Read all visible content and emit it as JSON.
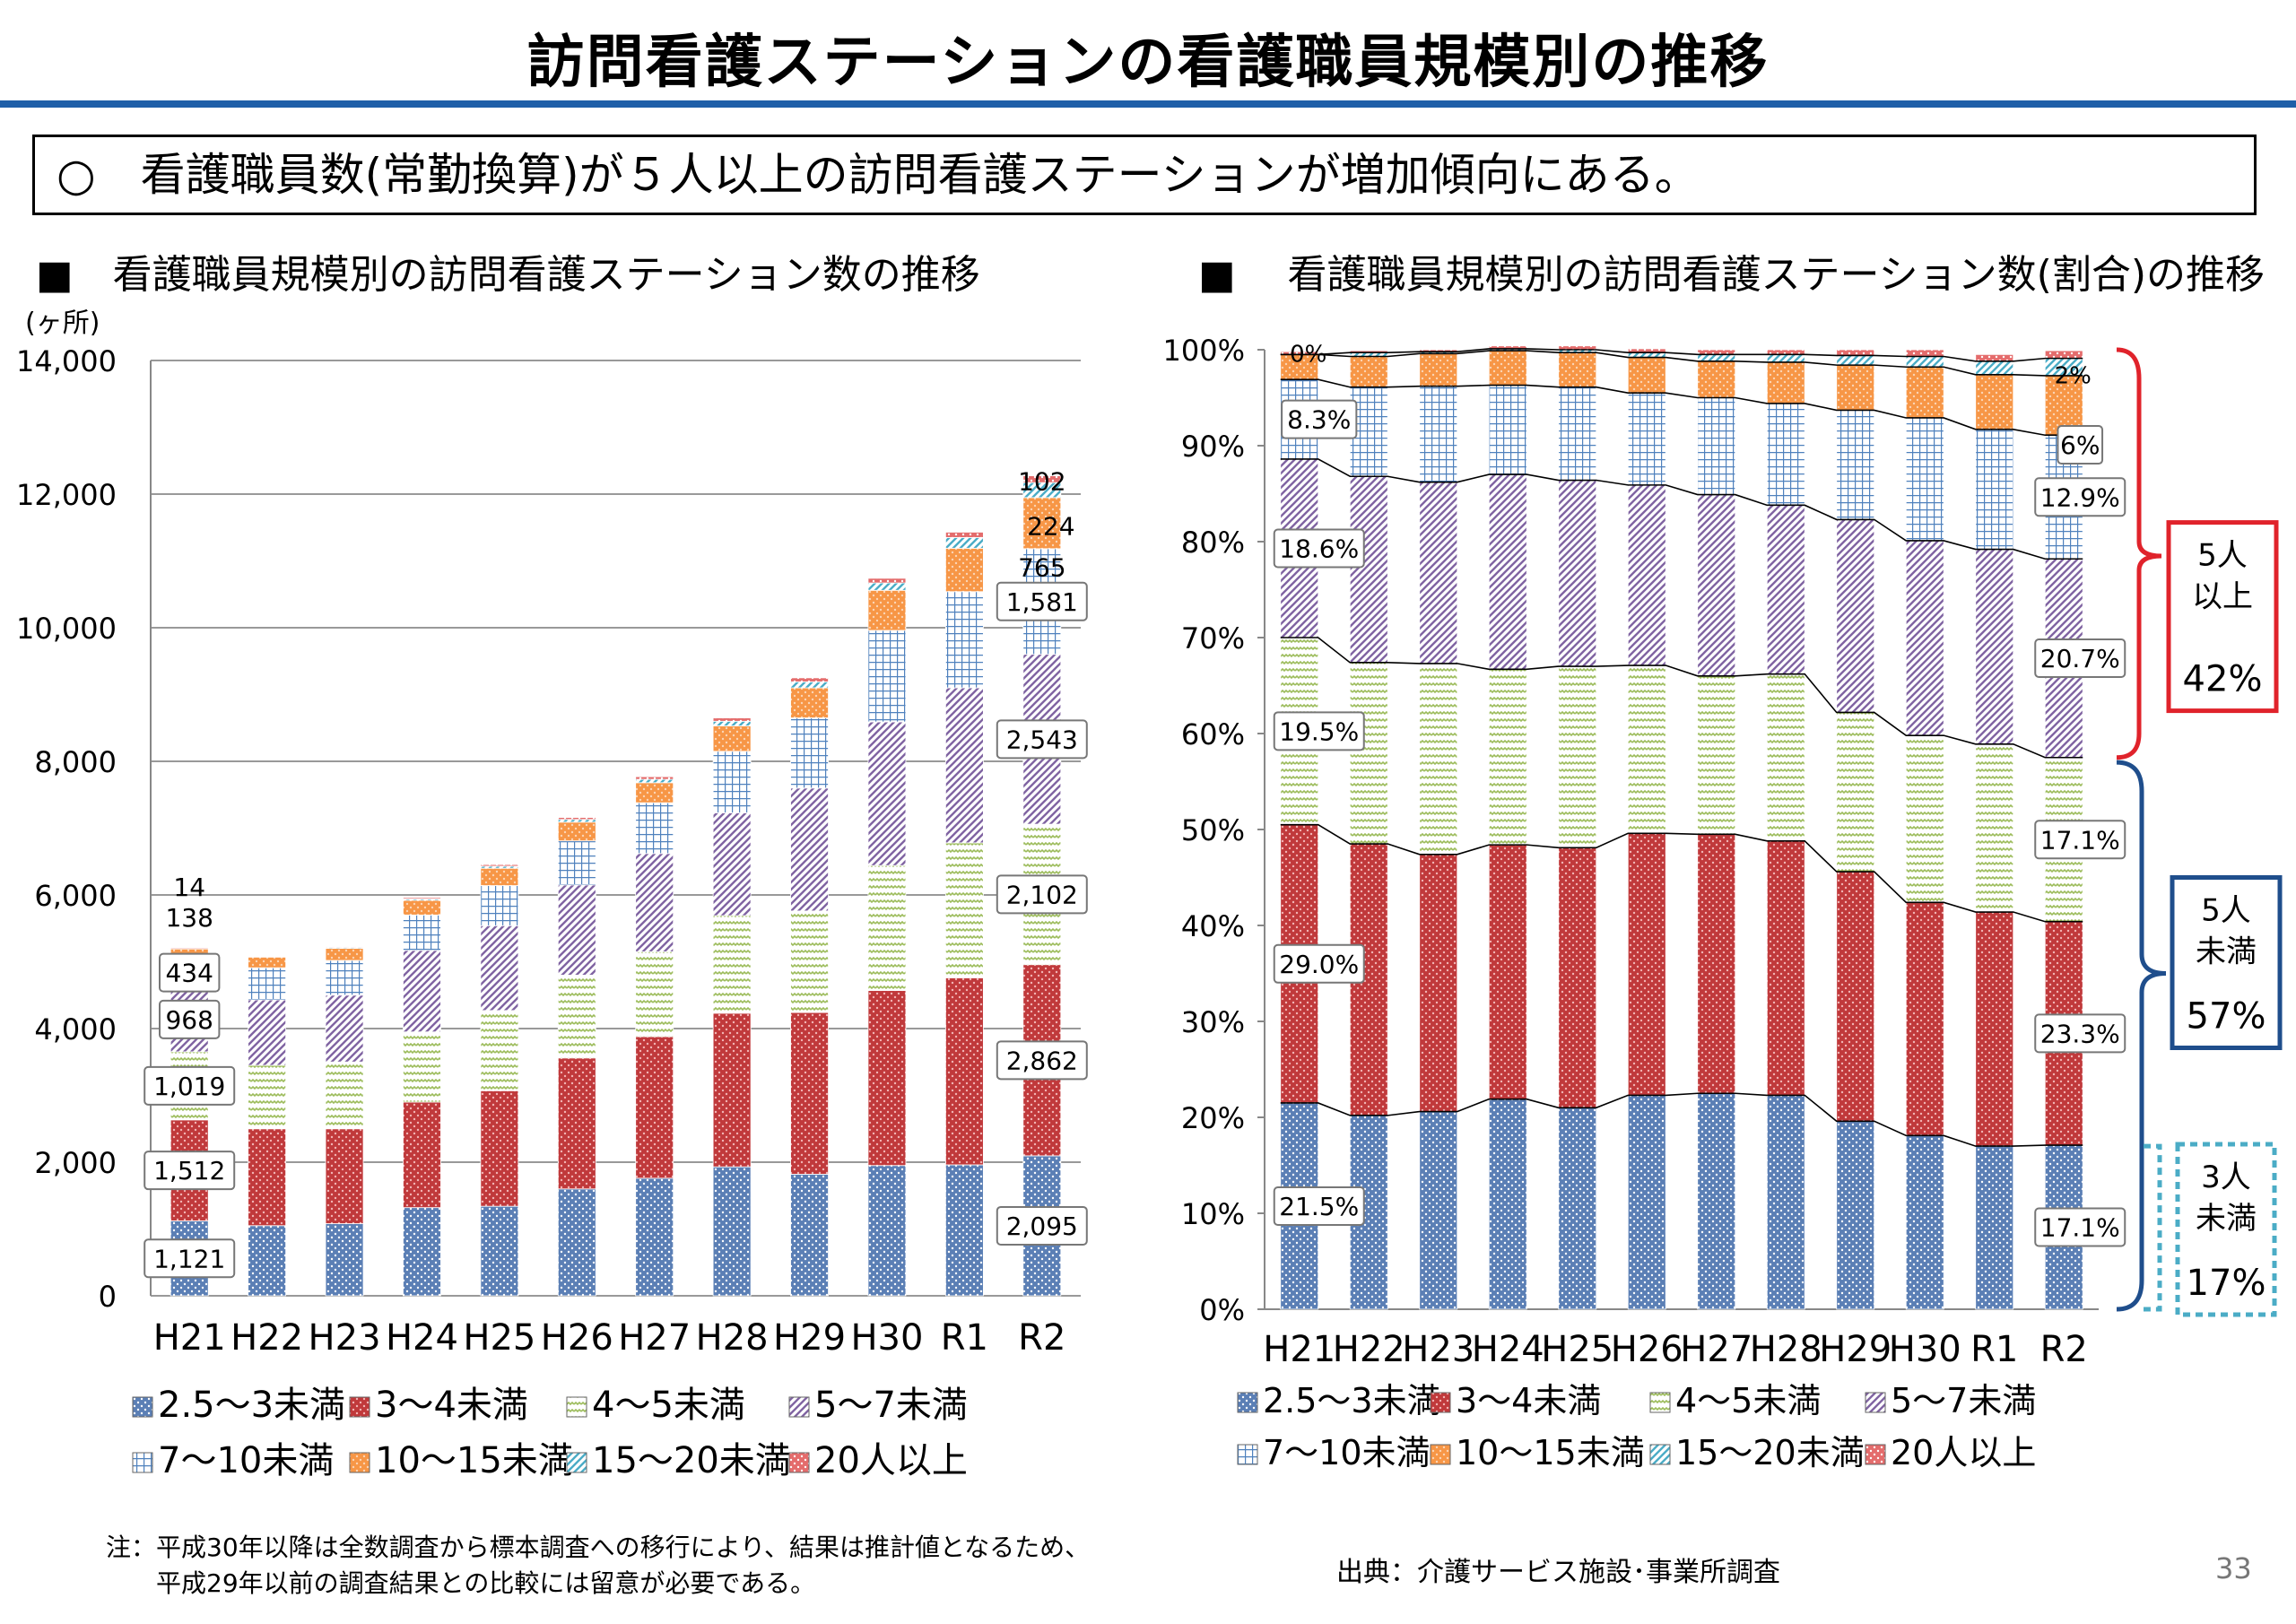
{
  "title": "訪問看護ステーションの看護職員規模別の推移",
  "summary": "○　看護職員数(常勤換算)が５人以上の訪問看護ステーションが増加傾向にある。",
  "left_heading": "■　看護職員規模別の訪問看護ステーション数の推移",
  "right_heading": "■　 看護職員規模別の訪問看護ステーション数(割合)の推移",
  "note_lines": [
    "注：平成30年以降は全数調査から標本調査への移行により、結果は推計値となるため、",
    "　　平成29年以前の調査結果との比較には留意が必要である。"
  ],
  "source": "出典：介護サービス施設･事業所調査",
  "page_number": "33",
  "chart_data": [
    {
      "type": "bar",
      "stacked": true,
      "ylabel": "(ヶ所)",
      "ylim": [
        0,
        14000
      ],
      "yticks": [
        "0",
        "2,000",
        "4,000",
        "6,000",
        "8,000",
        "10,000",
        "12,000",
        "14,000"
      ],
      "categories": [
        "H21",
        "H22",
        "H23",
        "H24",
        "H25",
        "H26",
        "H27",
        "H28",
        "H29",
        "H30",
        "R1",
        "R2"
      ],
      "series": [
        {
          "name": "2.5～3未満",
          "values": [
            1121,
            1050,
            1080,
            1320,
            1340,
            1600,
            1760,
            1930,
            1820,
            1950,
            1960,
            2095
          ]
        },
        {
          "name": "3～4未満",
          "values": [
            1512,
            1450,
            1420,
            1580,
            1730,
            1960,
            2120,
            2300,
            2420,
            2620,
            2800,
            2862
          ]
        },
        {
          "name": "4～5未満",
          "values": [
            1019,
            950,
            1000,
            1050,
            1200,
            1240,
            1270,
            1460,
            1520,
            1870,
            2020,
            2102
          ]
        },
        {
          "name": "5～7未満",
          "values": [
            968,
            980,
            1000,
            1220,
            1270,
            1350,
            1470,
            1540,
            1840,
            2150,
            2320,
            2543
          ]
        },
        {
          "name": "7～10未満",
          "values": [
            434,
            480,
            520,
            530,
            600,
            660,
            760,
            920,
            1050,
            1370,
            1440,
            1581
          ]
        },
        {
          "name": "10～15未満",
          "values": [
            138,
            160,
            180,
            220,
            260,
            280,
            300,
            380,
            450,
            600,
            650,
            765
          ]
        },
        {
          "name": "15～20未満",
          "values": [
            0,
            10,
            15,
            20,
            30,
            40,
            50,
            70,
            90,
            110,
            160,
            224
          ]
        },
        {
          "name": "20人以上",
          "values": [
            14,
            10,
            12,
            20,
            25,
            30,
            40,
            50,
            60,
            70,
            80,
            102
          ]
        }
      ],
      "data_labels": {
        "H21": [
          "1,121",
          "1,512",
          "1,019",
          "968",
          "434",
          "138",
          "",
          "14"
        ],
        "R2": [
          "2,095",
          "2,862",
          "2,102",
          "2,543",
          "1,581",
          "765",
          "224",
          "102"
        ]
      }
    },
    {
      "type": "bar",
      "stacked": true,
      "percent": true,
      "ylim": [
        0,
        100
      ],
      "yticks": [
        "0%",
        "10%",
        "20%",
        "30%",
        "40%",
        "50%",
        "60%",
        "70%",
        "80%",
        "90%",
        "100%"
      ],
      "categories": [
        "H21",
        "H22",
        "H23",
        "H24",
        "H25",
        "H26",
        "H27",
        "H28",
        "H29",
        "H30",
        "R1",
        "R2"
      ],
      "series": [
        {
          "name": "2.5～3未満",
          "values": [
            21.5,
            20.2,
            20.6,
            21.9,
            21.0,
            22.3,
            22.5,
            22.3,
            19.6,
            18.1,
            17.0,
            17.1
          ]
        },
        {
          "name": "3～4未満",
          "values": [
            29.0,
            28.3,
            26.8,
            26.5,
            27.1,
            27.3,
            27.0,
            26.5,
            26.0,
            24.3,
            24.4,
            23.3
          ]
        },
        {
          "name": "4～5未満",
          "values": [
            19.5,
            18.9,
            19.9,
            18.3,
            18.9,
            17.5,
            16.5,
            17.4,
            16.6,
            17.4,
            17.5,
            17.1
          ]
        },
        {
          "name": "5～7未満",
          "values": [
            18.6,
            19.4,
            18.9,
            20.3,
            19.4,
            18.8,
            18.9,
            17.6,
            20.1,
            20.3,
            20.3,
            20.7
          ]
        },
        {
          "name": "7～10未満",
          "values": [
            8.3,
            9.3,
            10.0,
            9.3,
            9.7,
            9.6,
            10.1,
            10.6,
            11.4,
            12.8,
            12.5,
            12.9
          ]
        },
        {
          "name": "10～15未満",
          "values": [
            2.6,
            3.2,
            3.4,
            3.6,
            3.6,
            3.7,
            3.8,
            4.3,
            4.7,
            5.3,
            5.7,
            6.2
          ]
        },
        {
          "name": "15～20未満",
          "values": [
            0.0,
            0.4,
            0.2,
            0.2,
            0.3,
            0.5,
            0.7,
            0.8,
            1.0,
            1.1,
            1.4,
            1.8
          ]
        },
        {
          "name": "20人以上",
          "values": [
            0.3,
            0.2,
            0.2,
            0.3,
            0.4,
            0.4,
            0.5,
            0.5,
            0.6,
            0.7,
            0.7,
            0.8
          ]
        }
      ],
      "data_labels": {
        "H21": [
          "21.5%",
          "29.0%",
          "19.5%",
          "18.6%",
          "8.3%",
          "",
          "0%",
          ""
        ],
        "R2": [
          "17.1%",
          "23.3%",
          "17.1%",
          "20.7%",
          "12.9%",
          "6%",
          "2%",
          ""
        ]
      },
      "annotations": [
        {
          "label": "5人\n以上",
          "value": "42%"
        },
        {
          "label": "5人\n未満",
          "value": "57%"
        },
        {
          "label": "3人\n未満",
          "value": "17%"
        }
      ]
    }
  ],
  "colors": {
    "2.5～3未満": "#5b7fb5",
    "3～4未満": "#c0393b",
    "4～5未満": "#9bbb59",
    "5～7未満": "#8064a2",
    "7～10未満": "#4f81bd",
    "10～15未満": "#f79646",
    "15～20未満": "#4bacc6",
    "20人以上": "#e46c6c",
    "rule": "#1f5fa8",
    "bracket_red": "#e0232b",
    "bracket_blue": "#1f4e8c",
    "bracket_teal": "#4bacc6"
  }
}
